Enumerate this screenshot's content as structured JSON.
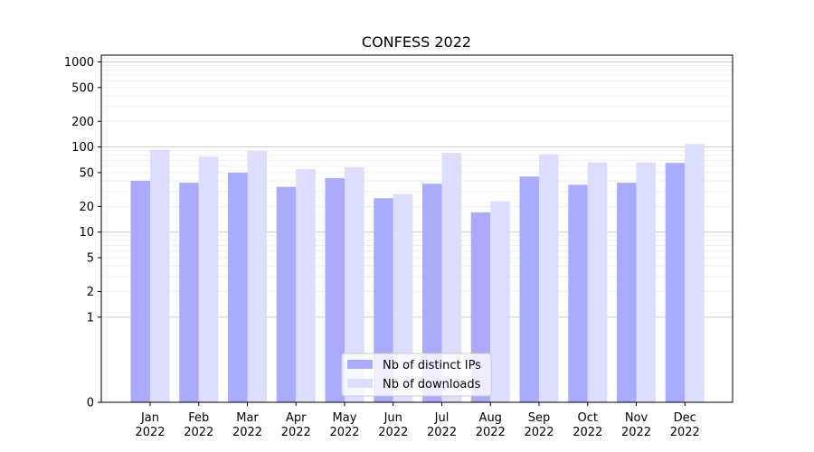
{
  "chart_data": {
    "type": "bar",
    "title": "CONFESS 2022",
    "xlabel": "",
    "ylabel": "",
    "yscale": "symlog",
    "ylim": [
      0,
      1200
    ],
    "yticks": [
      0,
      1,
      2,
      5,
      10,
      20,
      50,
      100,
      200,
      500,
      1000
    ],
    "grid": true,
    "legend_position": "bottom-center",
    "categories": [
      "Jan\n2022",
      "Feb\n2022",
      "Mar\n2022",
      "Apr\n2022",
      "May\n2022",
      "Jun\n2022",
      "Jul\n2022",
      "Aug\n2022",
      "Sep\n2022",
      "Oct\n2022",
      "Nov\n2022",
      "Dec\n2022"
    ],
    "series": [
      {
        "name": "Nb of distinct IPs",
        "color": "#aaaaff",
        "values": [
          40,
          38,
          50,
          34,
          43,
          25,
          37,
          17,
          45,
          36,
          38,
          65
        ]
      },
      {
        "name": "Nb of downloads",
        "color": "#ddddff",
        "values": [
          93,
          77,
          90,
          55,
          58,
          28,
          85,
          23,
          82,
          66,
          66,
          108
        ]
      }
    ]
  }
}
